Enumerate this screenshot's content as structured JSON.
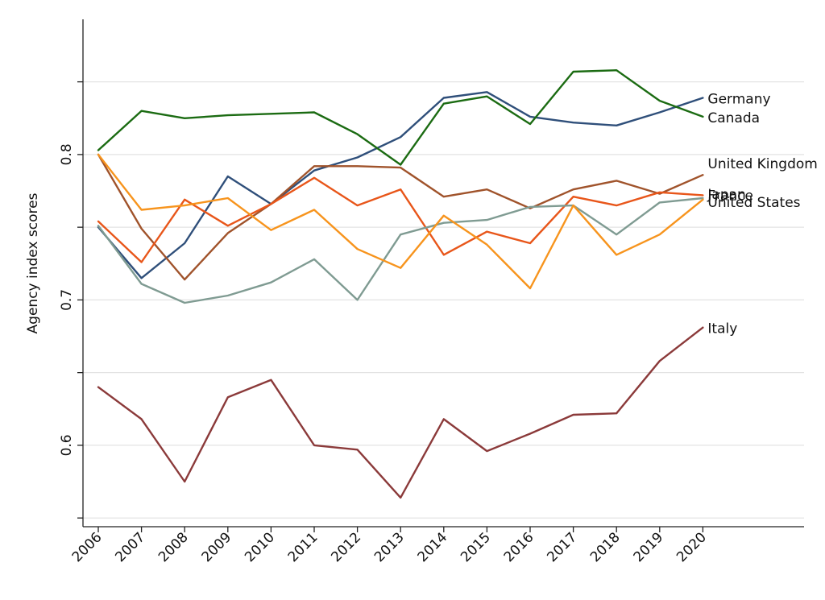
{
  "chart_data": {
    "type": "line",
    "title": "",
    "xlabel": "",
    "ylabel": "Agency index scores",
    "x": [
      2006,
      2007,
      2008,
      2009,
      2010,
      2011,
      2012,
      2013,
      2014,
      2015,
      2016,
      2017,
      2018,
      2019,
      2020
    ],
    "x_tick_labels": [
      "2006",
      "2007",
      "2008",
      "2009",
      "2010",
      "2011",
      "2012",
      "2013",
      "2014",
      "2015",
      "2016",
      "2017",
      "2018",
      "2019",
      "2020"
    ],
    "y_ticks": [
      0.6,
      0.7,
      0.8
    ],
    "y_tick_labels": [
      "0.6",
      "0.7",
      "0.8"
    ],
    "y_minor_ticks": [
      0.55,
      0.65,
      0.75,
      0.85
    ],
    "ylim": [
      0.544,
      0.893
    ],
    "grid": true,
    "legend": "none (series labelled at line ends)",
    "series": [
      {
        "name": "Germany",
        "color": "#2f4f7a",
        "values": [
          0.75,
          0.715,
          0.739,
          0.785,
          0.766,
          0.789,
          0.798,
          0.812,
          0.839,
          0.843,
          0.826,
          0.822,
          0.82,
          0.829,
          0.839
        ]
      },
      {
        "name": "Canada",
        "color": "#1b6b12",
        "values": [
          0.803,
          0.83,
          0.825,
          0.827,
          0.828,
          0.829,
          0.814,
          0.793,
          0.835,
          0.84,
          0.821,
          0.857,
          0.858,
          0.837,
          0.826
        ]
      },
      {
        "name": "United Kingdom",
        "color": "#a0532b",
        "values": [
          0.8,
          0.749,
          0.714,
          0.746,
          0.766,
          0.792,
          0.792,
          0.791,
          0.771,
          0.776,
          0.763,
          0.776,
          0.782,
          0.773,
          0.786
        ]
      },
      {
        "name": "France",
        "color": "#e8561a",
        "values": [
          0.754,
          0.726,
          0.769,
          0.751,
          0.766,
          0.784,
          0.765,
          0.776,
          0.731,
          0.747,
          0.739,
          0.771,
          0.765,
          0.774,
          0.772
        ]
      },
      {
        "name": "Japan",
        "color": "#7f9b92",
        "values": [
          0.751,
          0.711,
          0.698,
          0.703,
          0.712,
          0.728,
          0.7,
          0.745,
          0.753,
          0.755,
          0.764,
          0.765,
          0.745,
          0.767,
          0.77
        ]
      },
      {
        "name": "United States",
        "color": "#f7941d",
        "values": [
          0.8,
          0.762,
          0.765,
          0.77,
          0.748,
          0.762,
          0.735,
          0.722,
          0.758,
          0.738,
          0.708,
          0.765,
          0.731,
          0.745,
          0.769
        ]
      },
      {
        "name": "Italy",
        "color": "#8b3a3a",
        "values": [
          0.64,
          0.618,
          0.575,
          0.633,
          0.645,
          0.6,
          0.597,
          0.564,
          0.618,
          0.596,
          0.608,
          0.621,
          0.622,
          0.658,
          0.681
        ]
      }
    ]
  }
}
